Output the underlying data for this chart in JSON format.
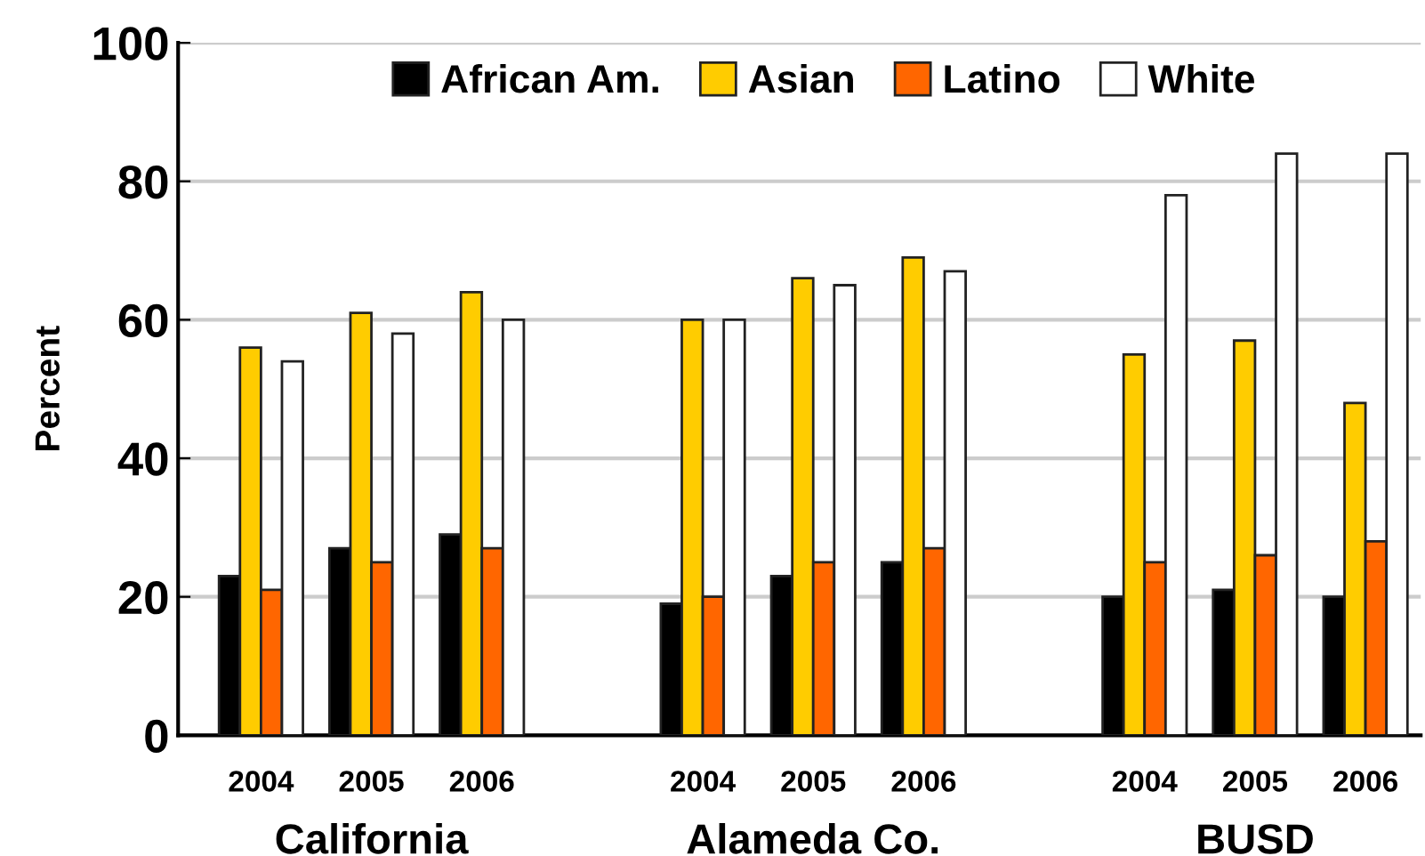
{
  "chart_data": {
    "type": "bar",
    "ylabel": "Percent",
    "categories": [
      "2004",
      "2005",
      "2006",
      null,
      "2004",
      "2005",
      "2006",
      null,
      "2004",
      "2005",
      "2006"
    ],
    "series": [
      {
        "name": "African Am.",
        "color": "#000000",
        "values": [
          23,
          27,
          29,
          null,
          19,
          23,
          25,
          null,
          20,
          21,
          20
        ]
      },
      {
        "name": "Asian",
        "color": "#ffcc00",
        "values": [
          56,
          61,
          64,
          null,
          60,
          66,
          69,
          null,
          55,
          57,
          48
        ]
      },
      {
        "name": "Latino",
        "color": "#ff6600",
        "values": [
          21,
          25,
          27,
          null,
          20,
          25,
          27,
          null,
          25,
          26,
          28
        ]
      },
      {
        "name": "White",
        "color": "#ffffff",
        "values": [
          54,
          58,
          60,
          null,
          60,
          65,
          67,
          null,
          78,
          84,
          84
        ]
      }
    ],
    "annotations": [
      "California",
      "Alameda Co.",
      "BUSD"
    ],
    "ylim": [
      0,
      100
    ],
    "yticks": [
      0,
      20,
      40,
      60,
      80,
      100
    ],
    "grid": "y",
    "legend": "top"
  }
}
